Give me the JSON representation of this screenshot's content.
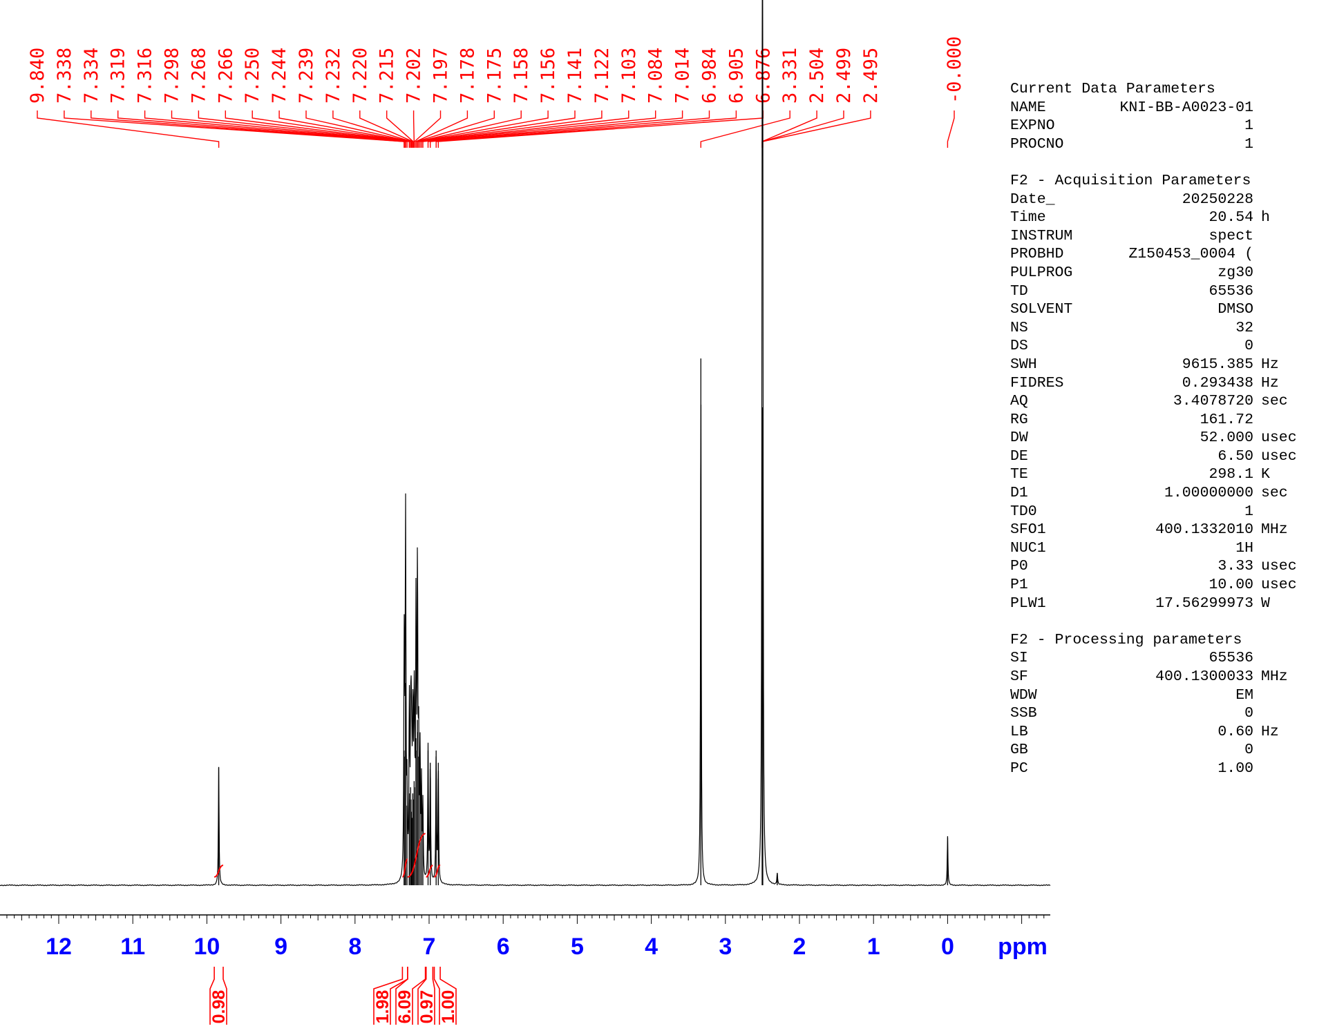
{
  "colors": {
    "peak_labels": "#ff0000",
    "integrals": "#ff0000",
    "axis_labels": "#0000ff",
    "spectrum": "#000000"
  },
  "chart_data": {
    "type": "line",
    "xlabel": "ppm",
    "x_range_ppm": [
      13.0,
      -1.4
    ],
    "x_reversed": true,
    "x_ticks": [
      "12",
      "11",
      "10",
      "9",
      "8",
      "7",
      "6",
      "5",
      "4",
      "3",
      "2",
      "1",
      "0"
    ],
    "peak_labels": [
      "9.840",
      "7.338",
      "7.334",
      "7.319",
      "7.316",
      "7.298",
      "7.268",
      "7.266",
      "7.250",
      "7.244",
      "7.239",
      "7.232",
      "7.220",
      "7.215",
      "7.202",
      "7.197",
      "7.178",
      "7.175",
      "7.158",
      "7.156",
      "7.141",
      "7.122",
      "7.103",
      "7.084",
      "7.014",
      "6.984",
      "6.905",
      "6.876",
      "3.331",
      "2.504",
      "2.499",
      "2.495",
      "-0.000"
    ],
    "peaks": [
      {
        "ppm": 9.84,
        "h": 0.193
      },
      {
        "ppm": 7.338,
        "h": 0.22
      },
      {
        "ppm": 7.334,
        "h": 0.21
      },
      {
        "ppm": 7.319,
        "h": 0.33
      },
      {
        "ppm": 7.316,
        "h": 0.3
      },
      {
        "ppm": 7.298,
        "h": 0.13
      },
      {
        "ppm": 7.268,
        "h": 0.15
      },
      {
        "ppm": 7.266,
        "h": 0.14
      },
      {
        "ppm": 7.25,
        "h": 0.16
      },
      {
        "ppm": 7.244,
        "h": 0.14
      },
      {
        "ppm": 7.239,
        "h": 0.12
      },
      {
        "ppm": 7.232,
        "h": 0.11
      },
      {
        "ppm": 7.22,
        "h": 0.15
      },
      {
        "ppm": 7.215,
        "h": 0.14
      },
      {
        "ppm": 7.202,
        "h": 0.17
      },
      {
        "ppm": 7.197,
        "h": 0.16
      },
      {
        "ppm": 7.178,
        "h": 0.24
      },
      {
        "ppm": 7.175,
        "h": 0.22
      },
      {
        "ppm": 7.158,
        "h": 0.27
      },
      {
        "ppm": 7.156,
        "h": 0.25
      },
      {
        "ppm": 7.141,
        "h": 0.21
      },
      {
        "ppm": 7.122,
        "h": 0.2
      },
      {
        "ppm": 7.103,
        "h": 0.15
      },
      {
        "ppm": 7.084,
        "h": 0.12
      },
      {
        "ppm": 7.014,
        "h": 0.22
      },
      {
        "ppm": 6.984,
        "h": 0.2
      },
      {
        "ppm": 6.905,
        "h": 0.22
      },
      {
        "ppm": 6.876,
        "h": 0.2
      },
      {
        "ppm": 3.331,
        "h": 0.86
      },
      {
        "ppm": 2.504,
        "h": 0.7
      },
      {
        "ppm": 2.499,
        "h": 0.78
      },
      {
        "ppm": 2.495,
        "h": 0.68
      },
      {
        "ppm": 2.3,
        "h": 0.02
      },
      {
        "ppm": -0.0,
        "h": 0.08
      }
    ],
    "integrals": [
      {
        "value": "0.98",
        "from": 9.9,
        "to": 9.78
      },
      {
        "value": "1.98",
        "from": 7.36,
        "to": 7.29
      },
      {
        "value": "6.09",
        "from": 7.29,
        "to": 7.05
      },
      {
        "value": "0.97",
        "from": 7.04,
        "to": 6.95
      },
      {
        "value": "1.00",
        "from": 6.93,
        "to": 6.85
      }
    ]
  },
  "params": {
    "groups": [
      {
        "title": "Current Data Parameters",
        "rows": [
          {
            "k": "NAME",
            "v": "KNI-BB-A0023-01",
            "u": ""
          },
          {
            "k": "EXPNO",
            "v": "1",
            "u": ""
          },
          {
            "k": "PROCNO",
            "v": "1",
            "u": ""
          }
        ]
      },
      {
        "title": "F2 - Acquisition Parameters",
        "rows": [
          {
            "k": "Date_",
            "v": "20250228",
            "u": ""
          },
          {
            "k": "Time",
            "v": "20.54",
            "u": "h"
          },
          {
            "k": "INSTRUM",
            "v": "spect",
            "u": ""
          },
          {
            "k": "PROBHD",
            "v": "Z150453_0004 (",
            "u": ""
          },
          {
            "k": "PULPROG",
            "v": "zg30",
            "u": ""
          },
          {
            "k": "TD",
            "v": "65536",
            "u": ""
          },
          {
            "k": "SOLVENT",
            "v": "DMSO",
            "u": ""
          },
          {
            "k": "NS",
            "v": "32",
            "u": ""
          },
          {
            "k": "DS",
            "v": "0",
            "u": ""
          },
          {
            "k": "SWH",
            "v": "9615.385",
            "u": "Hz"
          },
          {
            "k": "FIDRES",
            "v": "0.293438",
            "u": "Hz"
          },
          {
            "k": "AQ",
            "v": "3.4078720",
            "u": "sec"
          },
          {
            "k": "RG",
            "v": "161.72",
            "u": ""
          },
          {
            "k": "DW",
            "v": "52.000",
            "u": "usec"
          },
          {
            "k": "DE",
            "v": "6.50",
            "u": "usec"
          },
          {
            "k": "TE",
            "v": "298.1",
            "u": "K"
          },
          {
            "k": "D1",
            "v": "1.00000000",
            "u": "sec"
          },
          {
            "k": "TD0",
            "v": "1",
            "u": ""
          },
          {
            "k": "SFO1",
            "v": "400.1332010",
            "u": "MHz"
          },
          {
            "k": "NUC1",
            "v": "1H",
            "u": ""
          },
          {
            "k": "P0",
            "v": "3.33",
            "u": "usec"
          },
          {
            "k": "P1",
            "v": "10.00",
            "u": "usec"
          },
          {
            "k": "PLW1",
            "v": "17.56299973",
            "u": "W"
          }
        ]
      },
      {
        "title": "F2 - Processing parameters",
        "rows": [
          {
            "k": "SI",
            "v": "65536",
            "u": ""
          },
          {
            "k": "SF",
            "v": "400.1300033",
            "u": "MHz"
          },
          {
            "k": "WDW",
            "v": "EM",
            "u": ""
          },
          {
            "k": "SSB",
            "v": "0",
            "u": ""
          },
          {
            "k": "LB",
            "v": "0.60",
            "u": "Hz"
          },
          {
            "k": "GB",
            "v": "0",
            "u": ""
          },
          {
            "k": "PC",
            "v": "1.00",
            "u": ""
          }
        ]
      }
    ]
  }
}
